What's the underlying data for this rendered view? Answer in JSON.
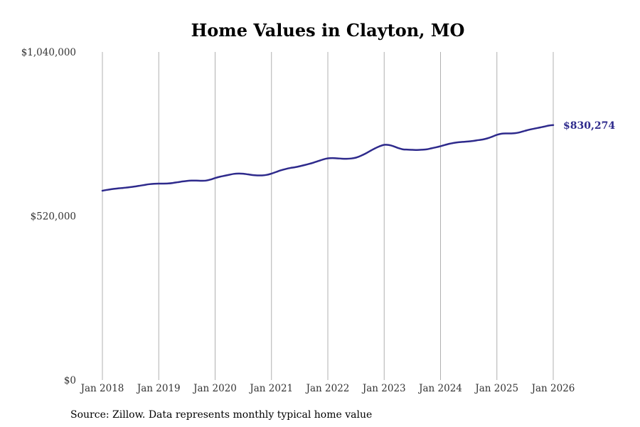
{
  "chart_data": {
    "type": "line",
    "title": "Home Values in Clayton, MO",
    "xlabel": "",
    "ylabel": "",
    "source": "Source: Zillow. Data represents monthly typical home value",
    "ylim": [
      0,
      1040000
    ],
    "yticks": [
      0,
      520000,
      1040000
    ],
    "ytick_labels": [
      "$0",
      "$520,000",
      "$1,040,000"
    ],
    "xticks": [
      "Jan 2018",
      "Jan 2019",
      "Jan 2020",
      "Jan 2021",
      "Jan 2022",
      "Jan 2023",
      "Jan 2024",
      "Jan 2025",
      "Jan 2026"
    ],
    "x_start": "Jan 2018",
    "x_end": "Jan 2026",
    "grid": "vertical",
    "line_color": "#2e2a8c",
    "end_label": "$830,274",
    "series": [
      {
        "name": "Typical home value",
        "frequency": "monthly",
        "values": [
          600100,
          602800,
          605100,
          606900,
          608400,
          609800,
          611600,
          613600,
          616000,
          618500,
          620800,
          622200,
          622700,
          622600,
          623100,
          624700,
          627000,
          629300,
          631100,
          632100,
          632200,
          631700,
          632100,
          635500,
          640200,
          644300,
          647500,
          650600,
          653500,
          654500,
          654000,
          651900,
          649700,
          648700,
          648600,
          650400,
          654300,
          659600,
          664700,
          668800,
          672100,
          674500,
          677700,
          681300,
          685100,
          689400,
          694300,
          699300,
          702700,
          703600,
          702800,
          701700,
          701400,
          702300,
          705000,
          710600,
          717700,
          726000,
          733900,
          740800,
          745600,
          745000,
          741000,
          735400,
          731300,
          730400,
          729800,
          729300,
          730000,
          731300,
          734300,
          737600,
          741300,
          745500,
          749200,
          752000,
          754000,
          755200,
          756400,
          758000,
          760400,
          762500,
          766200,
          771500,
          777200,
          780800,
          781700,
          781700,
          782700,
          785800,
          790000,
          794000,
          797000,
          800000,
          803100,
          806500,
          808100,
          807900,
          806100,
          804900,
          804300,
          805600,
          808500,
          812300,
          816700,
          821800,
          826300,
          830274,
          830274
        ]
      }
    ]
  }
}
